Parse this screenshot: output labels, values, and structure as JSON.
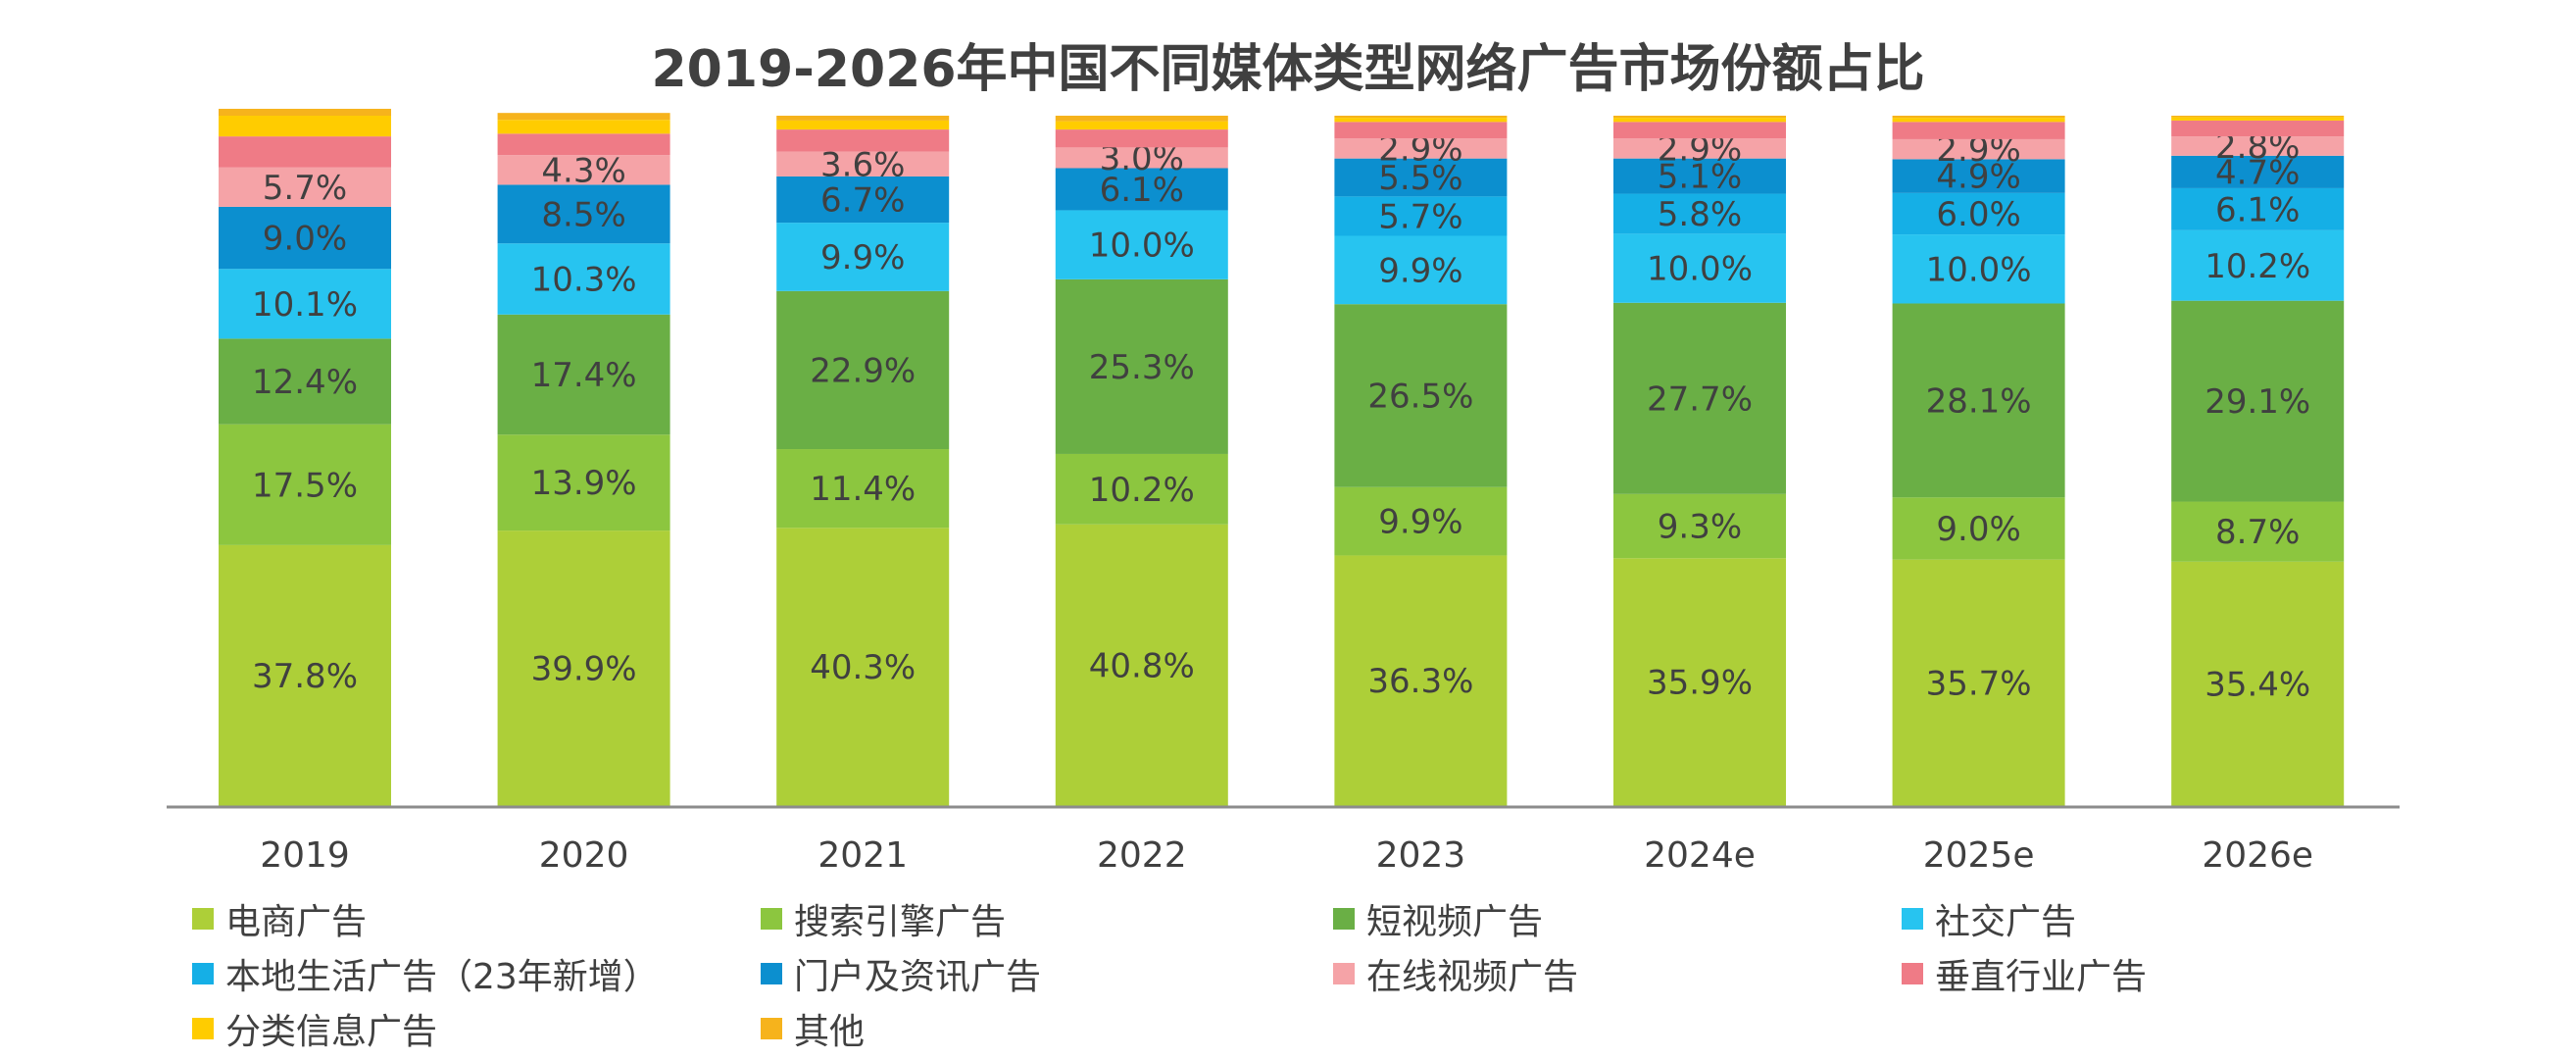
{
  "chart_data": {
    "type": "bar",
    "stacked": true,
    "title": "2019-2026年中国不同媒体类型网络广告市场份额占比",
    "categories": [
      "2019",
      "2020",
      "2021",
      "2022",
      "2023",
      "2024e",
      "2025e",
      "2026e"
    ],
    "ylim": [
      0,
      100
    ],
    "grid": false,
    "legend_position": "bottom",
    "series": [
      {
        "name": "电商广告",
        "color": "#adcf38",
        "values": [
          37.8,
          39.9,
          40.3,
          40.8,
          36.3,
          35.9,
          35.7,
          35.4
        ],
        "labels": [
          "37.8%",
          "39.9%",
          "40.3%",
          "40.8%",
          "36.3%",
          "35.9%",
          "35.7%",
          "35.4%"
        ]
      },
      {
        "name": "搜索引擎广告",
        "color": "#8cc63f",
        "values": [
          17.5,
          13.9,
          11.4,
          10.2,
          9.9,
          9.3,
          9.0,
          8.7
        ],
        "labels": [
          "17.5%",
          "13.9%",
          "11.4%",
          "10.2%",
          "9.9%",
          "9.3%",
          "9.0%",
          "8.7%"
        ]
      },
      {
        "name": "短视频广告",
        "color": "#6aaf45",
        "values": [
          12.4,
          17.4,
          22.9,
          25.3,
          26.5,
          27.7,
          28.1,
          29.1
        ],
        "labels": [
          "12.4%",
          "17.4%",
          "22.9%",
          "25.3%",
          "26.5%",
          "27.7%",
          "28.1%",
          "29.1%"
        ]
      },
      {
        "name": "社交广告",
        "color": "#27c4f0",
        "values": [
          10.1,
          10.3,
          9.9,
          10.0,
          9.9,
          10.0,
          10.0,
          10.2
        ],
        "labels": [
          "10.1%",
          "10.3%",
          "9.9%",
          "10.0%",
          "9.9%",
          "10.0%",
          "10.0%",
          "10.2%"
        ]
      },
      {
        "name": "本地生活广告（23年新增）",
        "color": "#15afe6",
        "values": [
          0,
          0,
          0,
          0,
          5.7,
          5.8,
          6.0,
          6.1
        ],
        "labels": [
          "",
          "",
          "",
          "",
          "5.7%",
          "5.8%",
          "6.0%",
          "6.1%"
        ]
      },
      {
        "name": "门户及资讯广告",
        "color": "#0c8fcf",
        "values": [
          9.0,
          8.5,
          6.7,
          6.1,
          5.5,
          5.1,
          4.9,
          4.7
        ],
        "labels": [
          "9.0%",
          "8.5%",
          "6.7%",
          "6.1%",
          "5.5%",
          "5.1%",
          "4.9%",
          "4.7%"
        ]
      },
      {
        "name": "在线视频广告",
        "color": "#f5a3a7",
        "values": [
          5.7,
          4.3,
          3.6,
          3.0,
          2.9,
          2.9,
          2.9,
          2.8
        ],
        "labels": [
          "5.7%",
          "4.3%",
          "3.6%",
          "3.0%",
          "2.9%",
          "2.9%",
          "2.9%",
          "2.8%"
        ]
      },
      {
        "name": "垂直行业广告",
        "color": "#ef7b86",
        "values": [
          4.5,
          3.1,
          3.2,
          2.6,
          2.4,
          2.4,
          2.5,
          2.3
        ],
        "labels": [
          "",
          "",
          "",
          "",
          "",
          "",
          "",
          ""
        ]
      },
      {
        "name": "分类信息广告",
        "color": "#ffcc00",
        "values": [
          3.0,
          2.0,
          1.3,
          1.2,
          0.6,
          0.6,
          0.6,
          0.5
        ],
        "labels": [
          "",
          "",
          "",
          "",
          "",
          "",
          "",
          ""
        ]
      },
      {
        "name": "其他",
        "color": "#f6b31c",
        "values": [
          1.0,
          1.0,
          0.7,
          0.8,
          0.3,
          0.3,
          0.3,
          0.2
        ],
        "labels": [
          "",
          "",
          "",
          "",
          "",
          "",
          "",
          ""
        ]
      }
    ]
  }
}
